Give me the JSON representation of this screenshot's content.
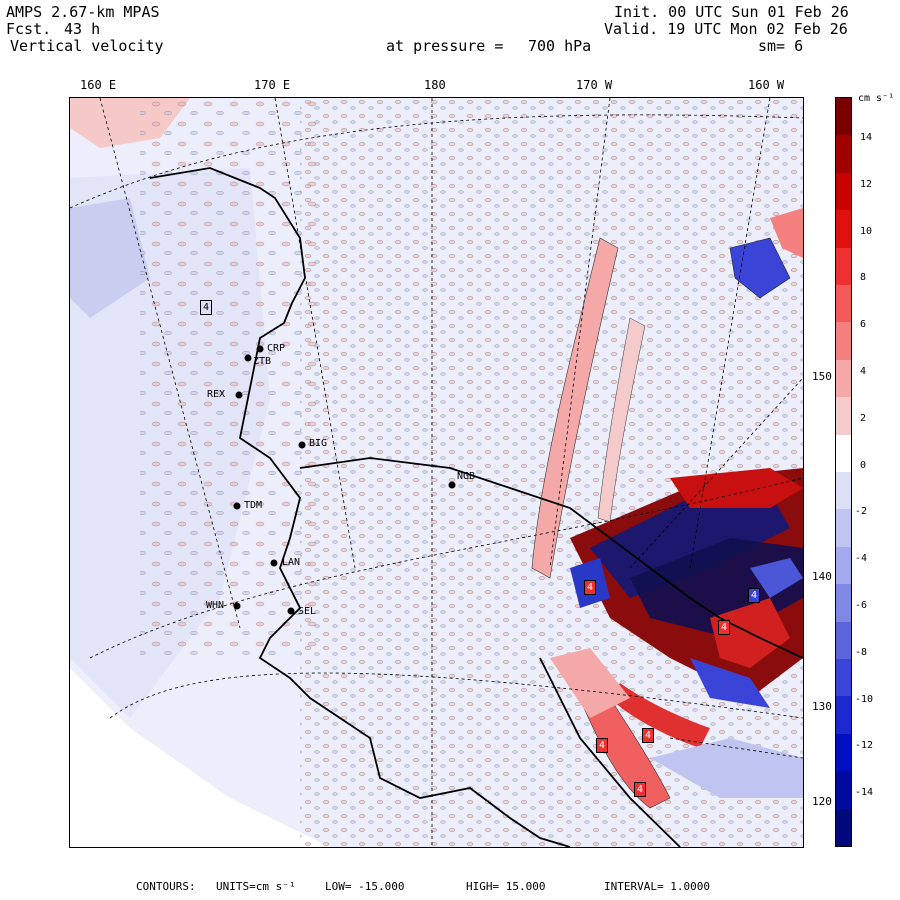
{
  "header": {
    "model": "AMPS 2.67-km MPAS",
    "forecast_label": "Fcst.",
    "forecast_value": "43 h",
    "field": "Vertical velocity",
    "init": "Init. 00 UTC Sun 01 Feb 26",
    "valid": "Valid. 19 UTC Mon 02 Feb 26",
    "pressure_label": "at pressure =",
    "pressure_value": "700 hPa",
    "smoothing": "sm= 6"
  },
  "lon_labels": [
    "160 E",
    "170 E",
    "180",
    "170 W",
    "160 W"
  ],
  "lat_labels": [
    "150 W",
    "140 W",
    "130 W",
    "120 W"
  ],
  "stations": [
    "CRP",
    "ZTB",
    "REX",
    "BIG",
    "NGB",
    "TDM",
    "LAN",
    "WHN",
    "SEL"
  ],
  "colorbar": {
    "units": "cm s⁻¹",
    "ticks": [
      "14",
      "12",
      "10",
      "8",
      "6",
      "4",
      "2",
      "0",
      "-2",
      "-4",
      "-6",
      "-8",
      "-10",
      "-12",
      "-14"
    ],
    "colors": [
      "#7a0000",
      "#a00000",
      "#c80000",
      "#e01010",
      "#f03030",
      "#f55a5a",
      "#f58080",
      "#f5a8a8",
      "#f5cccc",
      "#ffffff",
      "#dde0f5",
      "#c0c4f0",
      "#a4a8ec",
      "#8088e6",
      "#5c64dc",
      "#3a44d6",
      "#1c28cc",
      "#0010c0",
      "#000a9c",
      "#00087a"
    ]
  },
  "markers": [
    {
      "text": "4",
      "tone": "blue"
    },
    {
      "text": "4",
      "tone": "red"
    },
    {
      "text": "4",
      "tone": "blue"
    },
    {
      "text": "4",
      "tone": "red"
    },
    {
      "text": "4",
      "tone": "red"
    },
    {
      "text": "4",
      "tone": "red"
    },
    {
      "text": "4",
      "tone": "red"
    }
  ],
  "footer": {
    "contours": "CONTOURS:",
    "units_label": "UNITS=cm s⁻¹",
    "low": "LOW= -15.000",
    "high": "HIGH= 15.000",
    "interval": "INTERVAL= 1.0000"
  }
}
